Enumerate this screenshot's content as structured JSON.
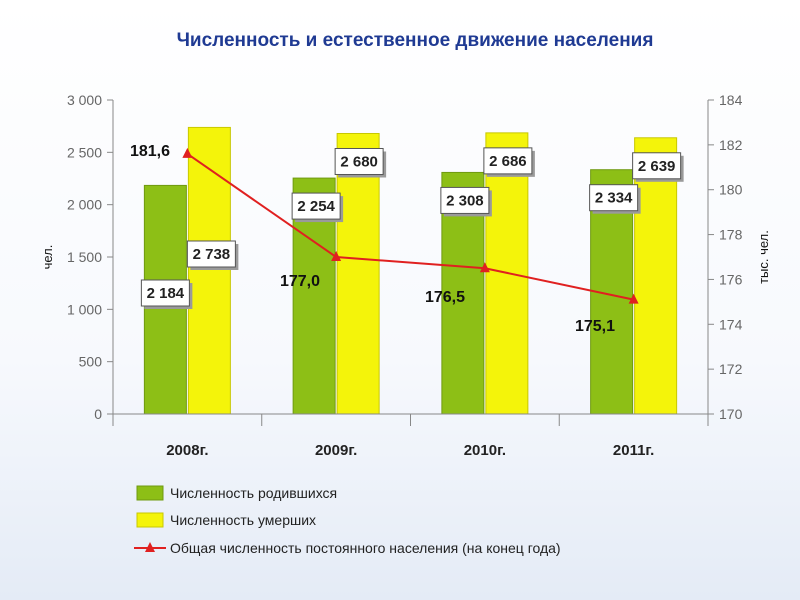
{
  "chart_data": {
    "type": "bar",
    "title": "Численность и естественное движение населения",
    "categories": [
      "2008г.",
      "2009г.",
      "2010г.",
      "2011г."
    ],
    "ylabel_left": "чел.",
    "ylabel_right": "тыс. чел.",
    "ylim_left": [
      0,
      3000
    ],
    "yticks_left": [
      0,
      500,
      1000,
      1500,
      2000,
      2500,
      3000
    ],
    "ytick_labels_left": [
      "0",
      "500",
      "1 000",
      "1 500",
      "2 000",
      "2 500",
      "3 000"
    ],
    "ylim_right": [
      170,
      184
    ],
    "yticks_right": [
      170,
      172,
      174,
      176,
      178,
      180,
      182,
      184
    ],
    "ytick_labels_right": [
      "170",
      "172",
      "174",
      "176",
      "178",
      "180",
      "182",
      "184"
    ],
    "series": [
      {
        "name": "Численность  родившихся",
        "type": "bar",
        "axis": "left",
        "color": "#8dbf16",
        "values": [
          2184,
          2254,
          2308,
          2334
        ],
        "value_labels": [
          "2 184",
          "2 254",
          "2 308",
          "2 334"
        ]
      },
      {
        "name": "Численность умерших",
        "type": "bar",
        "axis": "left",
        "color": "#f4f40a",
        "values": [
          2738,
          2680,
          2686,
          2639
        ],
        "value_labels": [
          "2 738",
          "2 680",
          "2 686",
          "2 639"
        ]
      },
      {
        "name": "Общая численность постоянного населения (на конец года)",
        "type": "line",
        "axis": "right",
        "color": "#e02020",
        "values": [
          181.6,
          177.0,
          176.5,
          175.1
        ],
        "value_labels": [
          "181,6",
          "177,0",
          "176,5",
          "175,1"
        ]
      }
    ],
    "grid": false,
    "legend_position": "bottom"
  }
}
